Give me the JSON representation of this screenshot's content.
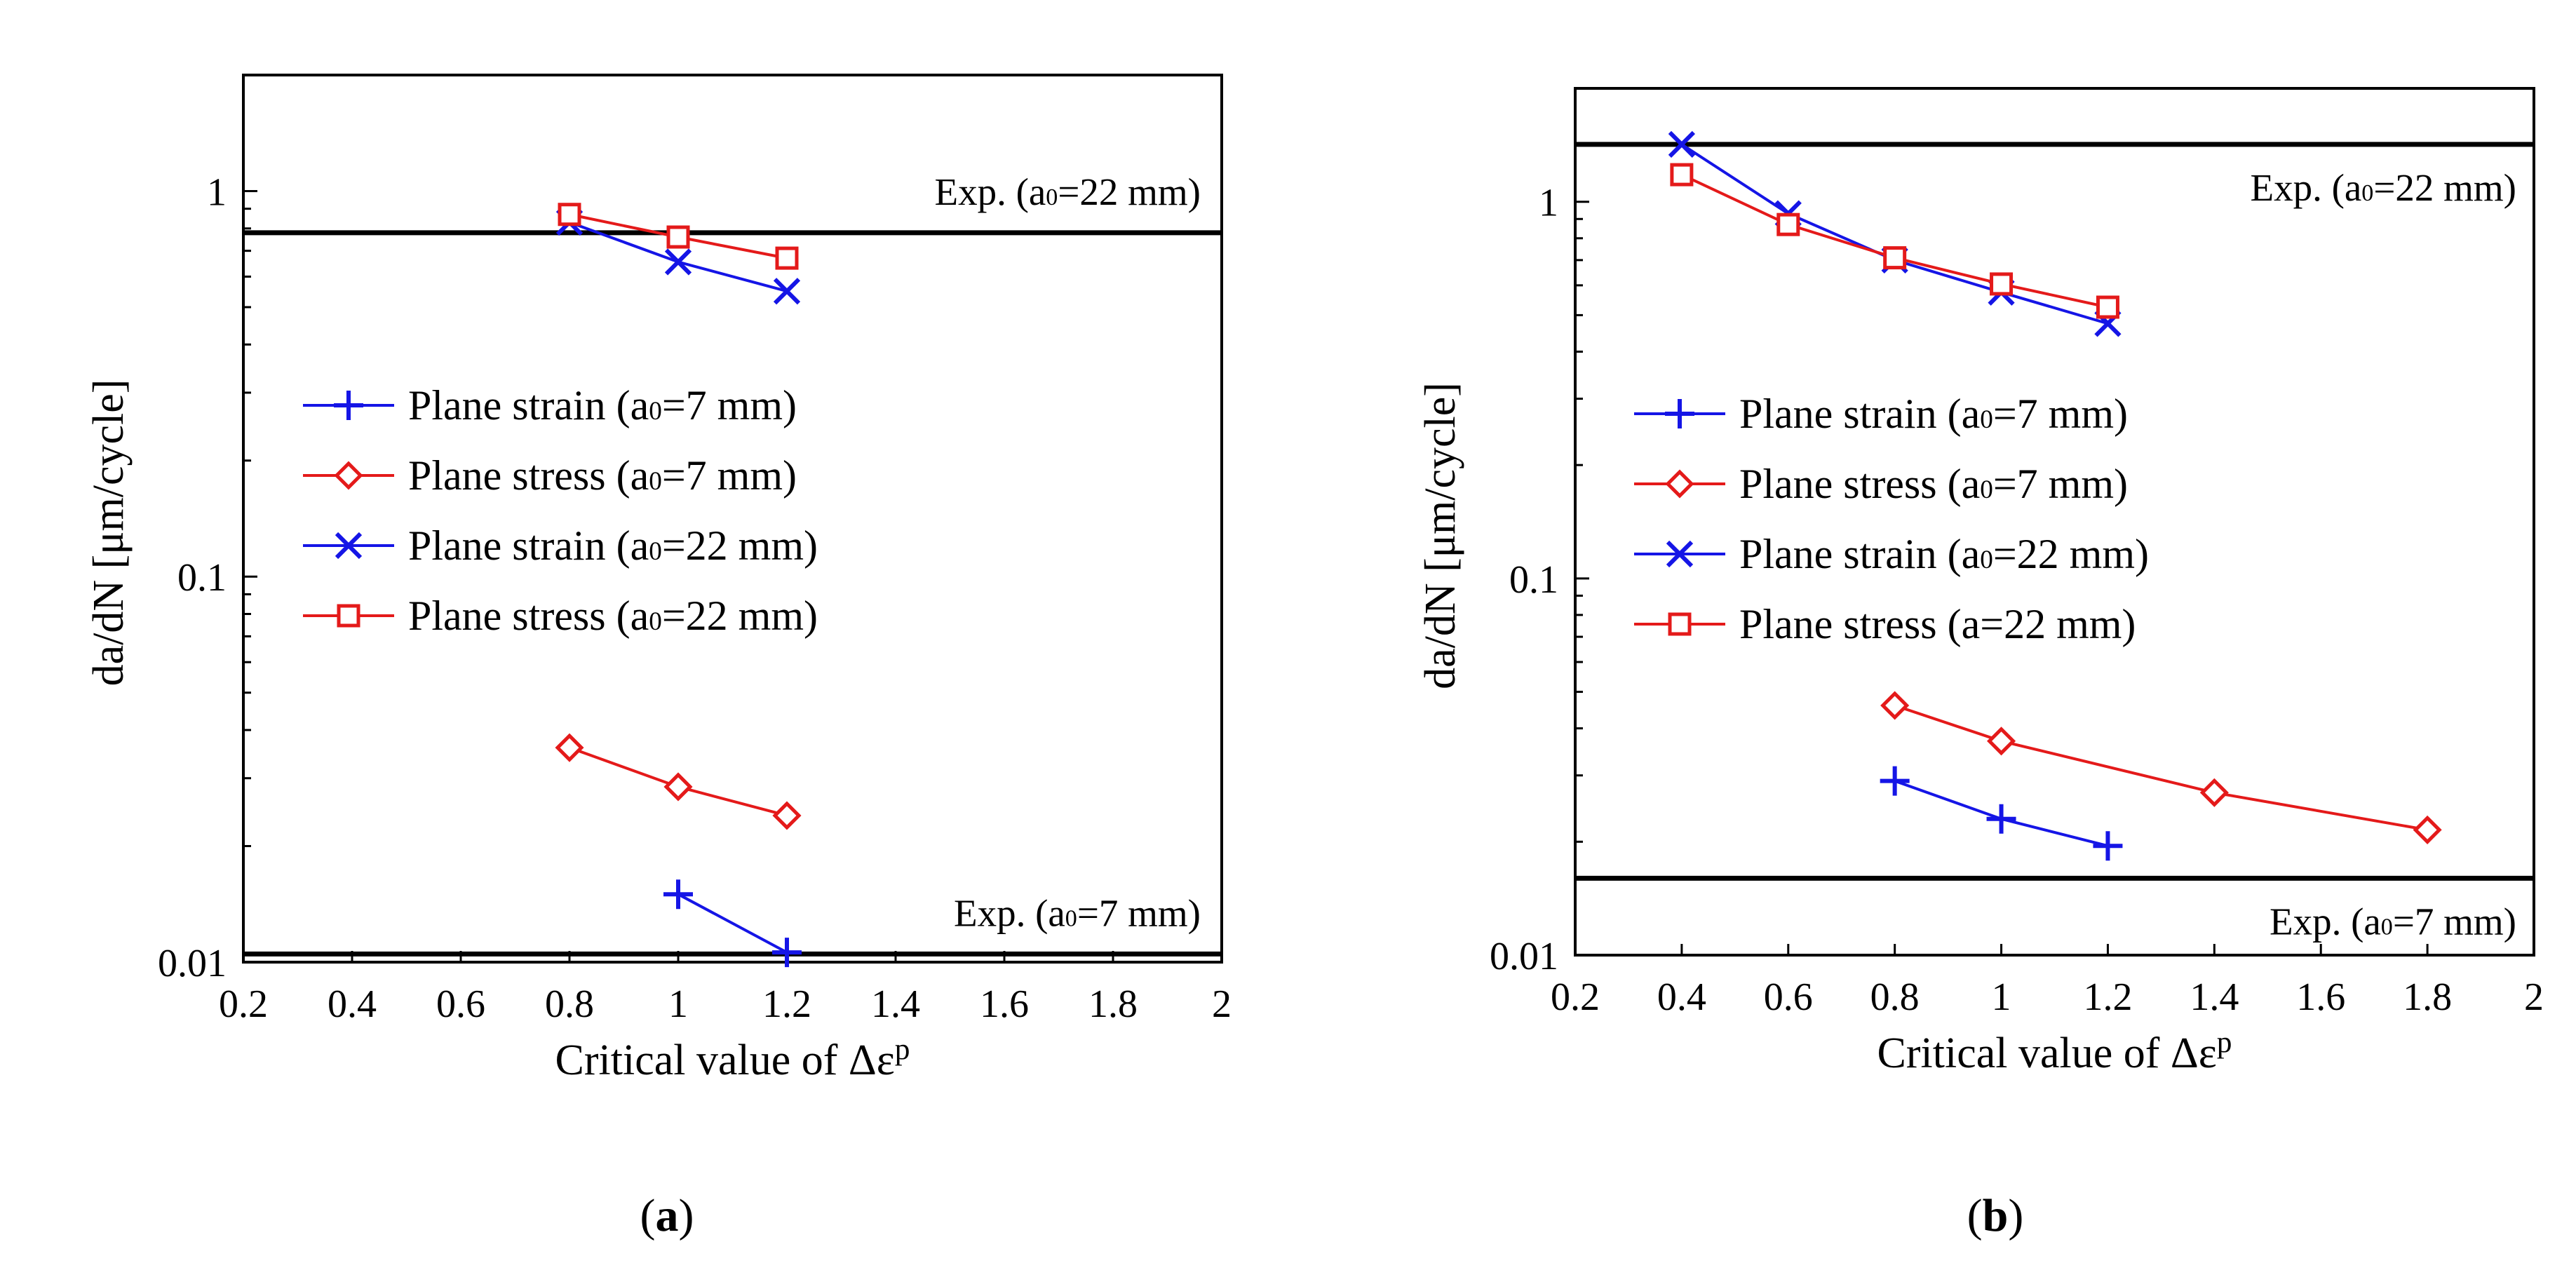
{
  "chart_data": [
    {
      "type": "line",
      "panel_label": "(a)",
      "xlabel": "Critical value of Δεᵖ",
      "ylabel": "da/dN [μm/cycle]",
      "x_scale": "linear",
      "y_scale": "log",
      "xlim": [
        0.2,
        2
      ],
      "ylim": [
        0.01,
        2
      ],
      "x_ticks": [
        "0.2",
        "0.4",
        "0.6",
        "0.8",
        "1",
        "1.2",
        "1.4",
        "1.6",
        "1.8",
        "2"
      ],
      "y_ticks": [
        "0.01",
        "0.1",
        "1"
      ],
      "y_tick_values": [
        0.01,
        0.1,
        1
      ],
      "legend_position": "center-left",
      "reference_lines": [
        {
          "label": "Exp. (a₀=22 mm)",
          "y": 0.78
        },
        {
          "label": "Exp. (a₀=7 mm)",
          "y": 0.0105
        }
      ],
      "series": [
        {
          "name": "Plane strain (a₀=7 mm)",
          "color": "#1515e6",
          "marker": "plus",
          "x": [
            1.0,
            1.2
          ],
          "y": [
            0.015,
            0.0106
          ]
        },
        {
          "name": "Plane stress (a₀=7 mm)",
          "color": "#e41a1a",
          "marker": "diamond",
          "x": [
            0.8,
            1.0,
            1.2
          ],
          "y": [
            0.036,
            0.0285,
            0.024
          ]
        },
        {
          "name": "Plane strain (a₀=22 mm)",
          "color": "#1515e6",
          "marker": "x",
          "x": [
            0.8,
            1.0,
            1.2
          ],
          "y": [
            0.83,
            0.655,
            0.55
          ]
        },
        {
          "name": "Plane stress (a₀=22 mm)",
          "color": "#e41a1a",
          "marker": "square",
          "x": [
            0.8,
            1.0,
            1.2
          ],
          "y": [
            0.87,
            0.76,
            0.67
          ]
        }
      ]
    },
    {
      "type": "line",
      "panel_label": "(b)",
      "xlabel": "Critical value of Δεᵖ",
      "ylabel": "da/dN [μm/cycle]",
      "x_scale": "linear",
      "y_scale": "log",
      "xlim": [
        0.2,
        2
      ],
      "ylim": [
        0.01,
        2
      ],
      "x_ticks": [
        "0.2",
        "0.4",
        "0.6",
        "0.8",
        "1",
        "1.2",
        "1.4",
        "1.6",
        "1.8",
        "2"
      ],
      "y_ticks": [
        "0.01",
        "0.1",
        "1"
      ],
      "y_tick_values": [
        0.01,
        0.1,
        1
      ],
      "legend_position": "center-left",
      "reference_lines": [
        {
          "label": "Exp. (a₀=22 mm)",
          "y": 1.42
        },
        {
          "label": "Exp. (a₀=7 mm)",
          "y": 0.016
        }
      ],
      "series": [
        {
          "name": "Plane strain (a₀=7 mm)",
          "color": "#1515e6",
          "marker": "plus",
          "x": [
            0.8,
            1.0,
            1.2
          ],
          "y": [
            0.029,
            0.023,
            0.0195
          ]
        },
        {
          "name": "Plane stress (a₀=7 mm)",
          "color": "#e41a1a",
          "marker": "diamond",
          "x": [
            0.8,
            1.0,
            1.4,
            1.8
          ],
          "y": [
            0.046,
            0.037,
            0.027,
            0.0215
          ]
        },
        {
          "name": "Plane strain (a₀=22 mm)",
          "color": "#1515e6",
          "marker": "x",
          "x": [
            0.4,
            0.6,
            0.8,
            1.0,
            1.2
          ],
          "y": [
            1.42,
            0.93,
            0.7,
            0.575,
            0.475
          ]
        },
        {
          "name": "Plane stress (a=22 mm)",
          "color": "#e41a1a",
          "marker": "square",
          "x": [
            0.4,
            0.6,
            0.8,
            1.0,
            1.2
          ],
          "y": [
            1.18,
            0.87,
            0.71,
            0.605,
            0.525
          ]
        }
      ]
    }
  ]
}
